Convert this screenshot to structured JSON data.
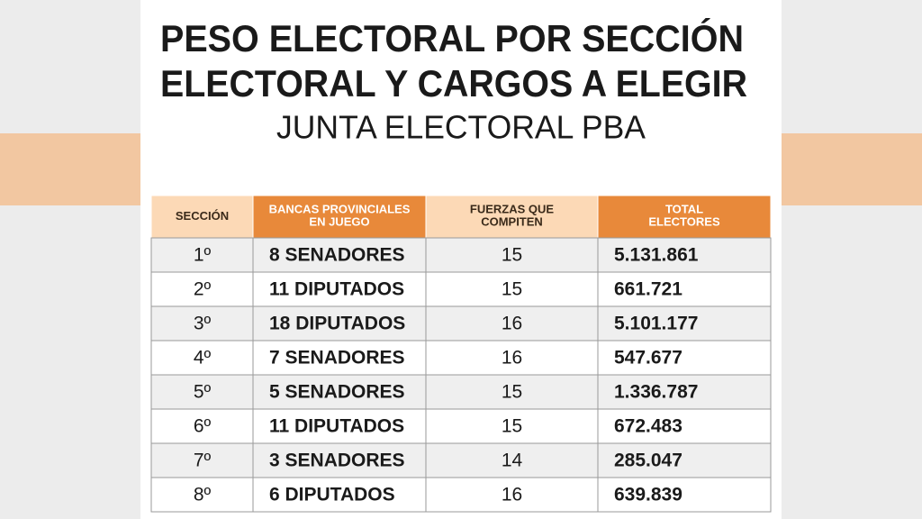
{
  "header": {
    "title": [
      "PESO ELECTORAL POR SECCIÓN",
      "ELECTORAL Y CARGOS A ELEGIR"
    ],
    "subtitle": "JUNTA ELECTORAL PBA"
  },
  "table": {
    "columns": [
      "SECCIÓN",
      "BANCAS PROVINCIALES EN JUEGO",
      "FUERZAS QUE COMPITEN",
      "TOTAL ELECTORES"
    ],
    "rows": [
      [
        "1º",
        "8 SENADORES",
        "15",
        "5.131.861"
      ],
      [
        "2º",
        "11 DIPUTADOS",
        "15",
        "661.721"
      ],
      [
        "3º",
        "18 DIPUTADOS",
        "16",
        "5.101.177"
      ],
      [
        "4º",
        "7 SENADORES",
        "16",
        "547.677"
      ],
      [
        "5º",
        "5 SENADORES",
        "15",
        "1.336.787"
      ],
      [
        "6º",
        "11 DIPUTADOS",
        "15",
        "672.483"
      ],
      [
        "7º",
        "3 SENADORES",
        "14",
        "285.047"
      ],
      [
        "8º",
        "6 DIPUTADOS",
        "16",
        "639.839"
      ]
    ]
  }
}
